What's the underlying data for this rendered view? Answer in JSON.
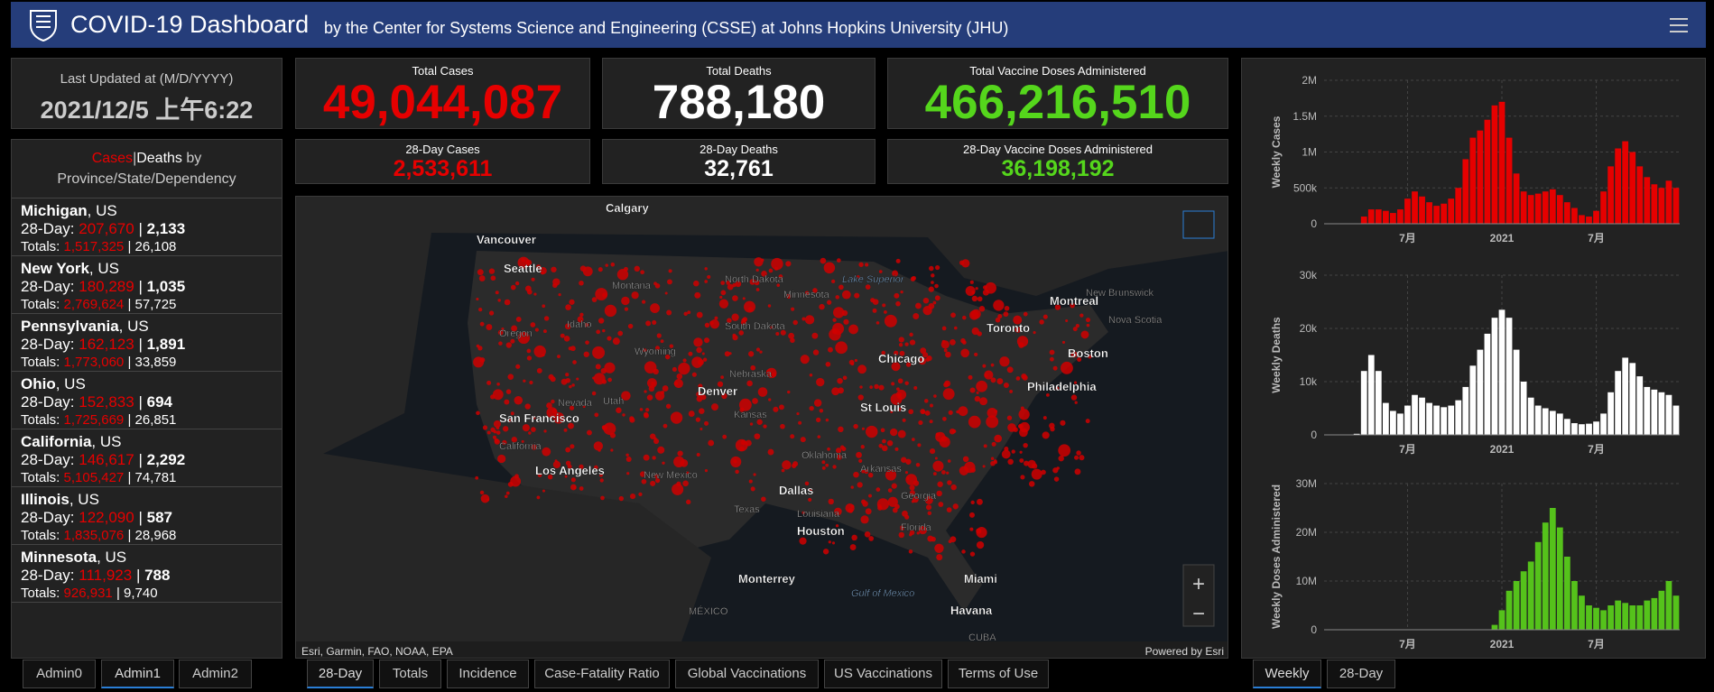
{
  "header": {
    "title": "COVID-19 Dashboard",
    "subtitle": "by the Center for Systems Science and Engineering (CSSE) at Johns Hopkins University (JHU)"
  },
  "last_updated": {
    "label": "Last Updated at (M/D/YYYY)",
    "value": "2021/12/5 上午6:22"
  },
  "totals": [
    {
      "label": "Total Cases",
      "value": "49,044,087",
      "color": "#e60000"
    },
    {
      "label": "Total Deaths",
      "value": "788,180",
      "color": "#ffffff"
    },
    {
      "label": "Total Vaccine Doses Administered",
      "value": "466,216,510",
      "color": "#55d61c"
    }
  ],
  "day28": [
    {
      "label": "28-Day Cases",
      "value": "2,533,611",
      "color": "#e60000"
    },
    {
      "label": "28-Day Deaths",
      "value": "32,761",
      "color": "#ffffff"
    },
    {
      "label": "28-Day Vaccine Doses Administered",
      "value": "36,198,192",
      "color": "#55d61c"
    }
  ],
  "list": {
    "title_cases": "Cases",
    "separator": "|",
    "title_deaths": "Deaths",
    "title_rest": "by Province/State/Dependency",
    "day28_label": "28-Day:",
    "totals_label": "Totals:",
    "items": [
      {
        "name": "Michigan",
        "country": ", US",
        "day28_cases": "207,670",
        "day28_deaths": "2,133",
        "total_cases": "1,517,325",
        "total_deaths": "26,108"
      },
      {
        "name": "New York",
        "country": ", US",
        "day28_cases": "180,289",
        "day28_deaths": "1,035",
        "total_cases": "2,769,624",
        "total_deaths": "57,725"
      },
      {
        "name": "Pennsylvania",
        "country": ", US",
        "day28_cases": "162,123",
        "day28_deaths": "1,891",
        "total_cases": "1,773,060",
        "total_deaths": "33,859"
      },
      {
        "name": "Ohio",
        "country": ", US",
        "day28_cases": "152,833",
        "day28_deaths": "694",
        "total_cases": "1,725,669",
        "total_deaths": "26,851"
      },
      {
        "name": "California",
        "country": ", US",
        "day28_cases": "146,617",
        "day28_deaths": "2,292",
        "total_cases": "5,105,427",
        "total_deaths": "74,781"
      },
      {
        "name": "Illinois",
        "country": ", US",
        "day28_cases": "122,090",
        "day28_deaths": "587",
        "total_cases": "1,835,076",
        "total_deaths": "28,968"
      },
      {
        "name": "Minnesota",
        "country": ", US",
        "day28_cases": "111,923",
        "day28_deaths": "788",
        "total_cases": "926,931",
        "total_deaths": "9,740"
      }
    ]
  },
  "map": {
    "attribution": "Esri, Garmin, FAO, NOAA, EPA",
    "powered": "Powered by Esri",
    "zoom_in": "+",
    "zoom_out": "−",
    "labels": [
      "Calgary",
      "Vancouver",
      "Seattle",
      "Montana",
      "North Dakota",
      "Minnesota",
      "Lake Superior",
      "Montreal",
      "New Brunswick",
      "Nova Scotia",
      "Idaho",
      "Oregon",
      "South Dakota",
      "Wyoming",
      "Toronto",
      "Chicago",
      "Boston",
      "Nebraska",
      "Denver",
      "Philadelphia",
      "Nevada",
      "Utah",
      "Kansas",
      "St Louis",
      "San Francisco",
      "California",
      "Los Angeles",
      "New Mexico",
      "Oklahoma",
      "Arkansas",
      "Dallas",
      "Texas",
      "Louisiana",
      "Houston",
      "Florida",
      "Georgia",
      "Miami",
      "Monterrey",
      "Gulf of Mexico",
      "MÉXICO",
      "Havana",
      "CUBA"
    ]
  },
  "tabs_left": [
    "Admin0",
    "Admin1",
    "Admin2"
  ],
  "tabs_map": [
    "28-Day",
    "Totals",
    "Incidence",
    "Case-Fatality Ratio",
    "Global Vaccinations",
    "US Vaccinations",
    "Terms of Use"
  ],
  "tabs_chart": [
    "Weekly",
    "28-Day"
  ],
  "chart_data": [
    {
      "type": "bar",
      "y_label": "Weekly Cases",
      "color": "#e60000",
      "grid": true,
      "categories": [
        null,
        null,
        null,
        null,
        null,
        null,
        null,
        null,
        null,
        null,
        null,
        "7月",
        null,
        null,
        null,
        null,
        null,
        null,
        null,
        null,
        null,
        null,
        null,
        null,
        "2021",
        null,
        null,
        null,
        null,
        null,
        null,
        null,
        null,
        null,
        null,
        null,
        null,
        "7月",
        null,
        null,
        null,
        null,
        null,
        null,
        null,
        null,
        null,
        null,
        null
      ],
      "values": [
        0,
        0,
        0,
        0,
        5000,
        100000,
        200000,
        200000,
        180000,
        150000,
        200000,
        350000,
        450000,
        380000,
        300000,
        250000,
        280000,
        350000,
        500000,
        900000,
        1200000,
        1300000,
        1450000,
        1650000,
        1700000,
        1200000,
        700000,
        450000,
        400000,
        420000,
        450000,
        480000,
        400000,
        300000,
        220000,
        120000,
        100000,
        180000,
        450000,
        800000,
        1050000,
        1150000,
        1000000,
        800000,
        650000,
        550000,
        500000,
        600000,
        500000
      ],
      "ylim": [
        0,
        2000000
      ],
      "yticks": [
        0,
        {
          "value": 500000,
          "label": "500k"
        },
        {
          "value": 1000000,
          "label": "1M"
        },
        {
          "value": 1500000,
          "label": "1.5M"
        },
        {
          "value": 2000000,
          "label": "2M"
        }
      ]
    },
    {
      "type": "bar",
      "y_label": "Weekly Deaths",
      "color": "#ffffff",
      "grid": true,
      "categories": [
        null,
        null,
        null,
        null,
        null,
        null,
        null,
        null,
        null,
        null,
        null,
        "7月",
        null,
        null,
        null,
        null,
        null,
        null,
        null,
        null,
        null,
        null,
        null,
        null,
        "2021",
        null,
        null,
        null,
        null,
        null,
        null,
        null,
        null,
        null,
        null,
        null,
        null,
        "7月",
        null,
        null,
        null,
        null,
        null,
        null,
        null,
        null,
        null,
        null,
        null
      ],
      "values": [
        0,
        0,
        0,
        0,
        200,
        12000,
        15000,
        12000,
        6000,
        4500,
        4000,
        5500,
        7500,
        7000,
        6000,
        5500,
        5200,
        5500,
        6500,
        9000,
        13000,
        16000,
        19000,
        22000,
        23500,
        22000,
        16000,
        10000,
        7000,
        5500,
        5000,
        4500,
        4000,
        3000,
        2200,
        2000,
        2100,
        2500,
        4000,
        8000,
        12000,
        14500,
        13500,
        11000,
        9000,
        8500,
        8000,
        7500,
        5500
      ],
      "ylim": [
        0,
        30000
      ],
      "yticks": [
        0,
        {
          "value": 10000,
          "label": "10k"
        },
        {
          "value": 20000,
          "label": "20k"
        },
        {
          "value": 30000,
          "label": "30k"
        }
      ]
    },
    {
      "type": "bar",
      "y_label": "Weekly Doses Administered",
      "color": "#55c21b",
      "grid": true,
      "categories": [
        null,
        null,
        null,
        null,
        null,
        null,
        null,
        null,
        null,
        null,
        null,
        "7月",
        null,
        null,
        null,
        null,
        null,
        null,
        null,
        null,
        null,
        null,
        null,
        null,
        "2021",
        null,
        null,
        null,
        null,
        null,
        null,
        null,
        null,
        null,
        null,
        null,
        null,
        "7月",
        null,
        null,
        null,
        null,
        null,
        null,
        null,
        null,
        null,
        null,
        null
      ],
      "values": [
        0,
        0,
        0,
        0,
        0,
        0,
        0,
        0,
        0,
        0,
        0,
        0,
        0,
        0,
        0,
        0,
        0,
        0,
        0,
        0,
        0,
        0,
        0,
        1000000,
        4000000,
        8000000,
        10000000,
        12000000,
        14000000,
        18000000,
        22000000,
        25000000,
        21000000,
        15000000,
        10000000,
        7000000,
        5000000,
        4500000,
        4000000,
        5000000,
        6000000,
        5500000,
        5000000,
        5000000,
        6000000,
        6500000,
        8000000,
        10000000,
        7000000
      ],
      "ylim": [
        0,
        30000000
      ],
      "yticks": [
        0,
        {
          "value": 10000000,
          "label": "10M"
        },
        {
          "value": 20000000,
          "label": "20M"
        },
        {
          "value": 30000000,
          "label": "30M"
        }
      ]
    }
  ]
}
